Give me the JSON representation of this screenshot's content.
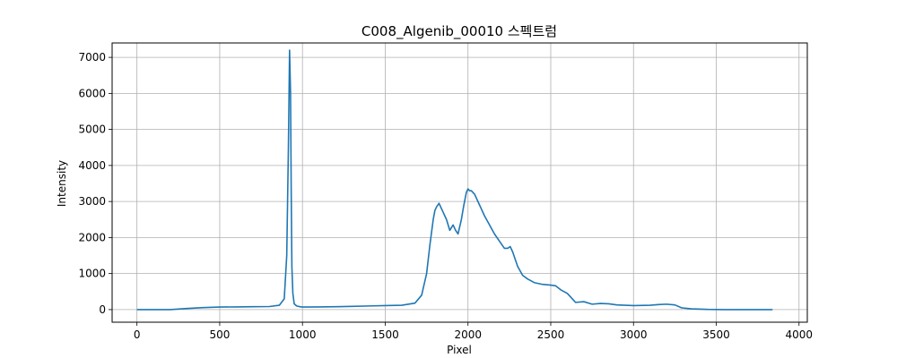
{
  "chart_data": {
    "type": "line",
    "title": "C008_Algenib_00010 스펙트럼",
    "xlabel": "Pixel",
    "ylabel": "Intensity",
    "xlim": [
      -150,
      4050
    ],
    "ylim": [
      -350,
      7400
    ],
    "xticks": [
      0,
      500,
      1000,
      1500,
      2000,
      2500,
      3000,
      3500,
      4000
    ],
    "xtick_labels": [
      "0",
      "500",
      "1000",
      "1500",
      "2000",
      "2500",
      "3000",
      "3500",
      "4000"
    ],
    "yticks": [
      0,
      1000,
      2000,
      3000,
      4000,
      5000,
      6000,
      7000
    ],
    "ytick_labels": [
      "0",
      "1000",
      "2000",
      "3000",
      "4000",
      "5000",
      "6000",
      "7000"
    ],
    "grid": true,
    "series_color": "#1f77b4",
    "series": [
      {
        "x": [
          0,
          200,
          300,
          400,
          500,
          600,
          700,
          800,
          860,
          890,
          905,
          915,
          922,
          928,
          932,
          936,
          942,
          950,
          965,
          985,
          1000,
          1100,
          1200,
          1300,
          1400,
          1500,
          1600,
          1680,
          1720,
          1750,
          1770,
          1790,
          1800,
          1810,
          1825,
          1840,
          1850,
          1870,
          1890,
          1910,
          1925,
          1940,
          1960,
          1975,
          1990,
          2000,
          2010,
          2020,
          2040,
          2060,
          2080,
          2100,
          2130,
          2160,
          2190,
          2220,
          2240,
          2255,
          2270,
          2300,
          2330,
          2360,
          2400,
          2450,
          2500,
          2530,
          2560,
          2600,
          2630,
          2650,
          2700,
          2750,
          2800,
          2850,
          2900,
          3000,
          3100,
          3150,
          3200,
          3250,
          3290,
          3350,
          3450,
          3550,
          3700,
          3840
        ],
        "values": [
          0,
          0,
          30,
          55,
          70,
          75,
          80,
          85,
          120,
          300,
          1500,
          4500,
          7200,
          6000,
          3300,
          1200,
          450,
          160,
          100,
          80,
          70,
          75,
          80,
          90,
          100,
          110,
          120,
          180,
          400,
          1000,
          1800,
          2500,
          2750,
          2850,
          2950,
          2800,
          2700,
          2500,
          2200,
          2350,
          2200,
          2100,
          2500,
          2900,
          3250,
          3350,
          3300,
          3300,
          3200,
          3000,
          2800,
          2600,
          2350,
          2100,
          1900,
          1700,
          1700,
          1750,
          1600,
          1200,
          950,
          850,
          750,
          700,
          680,
          660,
          550,
          450,
          300,
          200,
          220,
          150,
          170,
          160,
          130,
          110,
          120,
          140,
          150,
          130,
          50,
          20,
          5,
          0,
          0,
          0
        ]
      }
    ]
  }
}
